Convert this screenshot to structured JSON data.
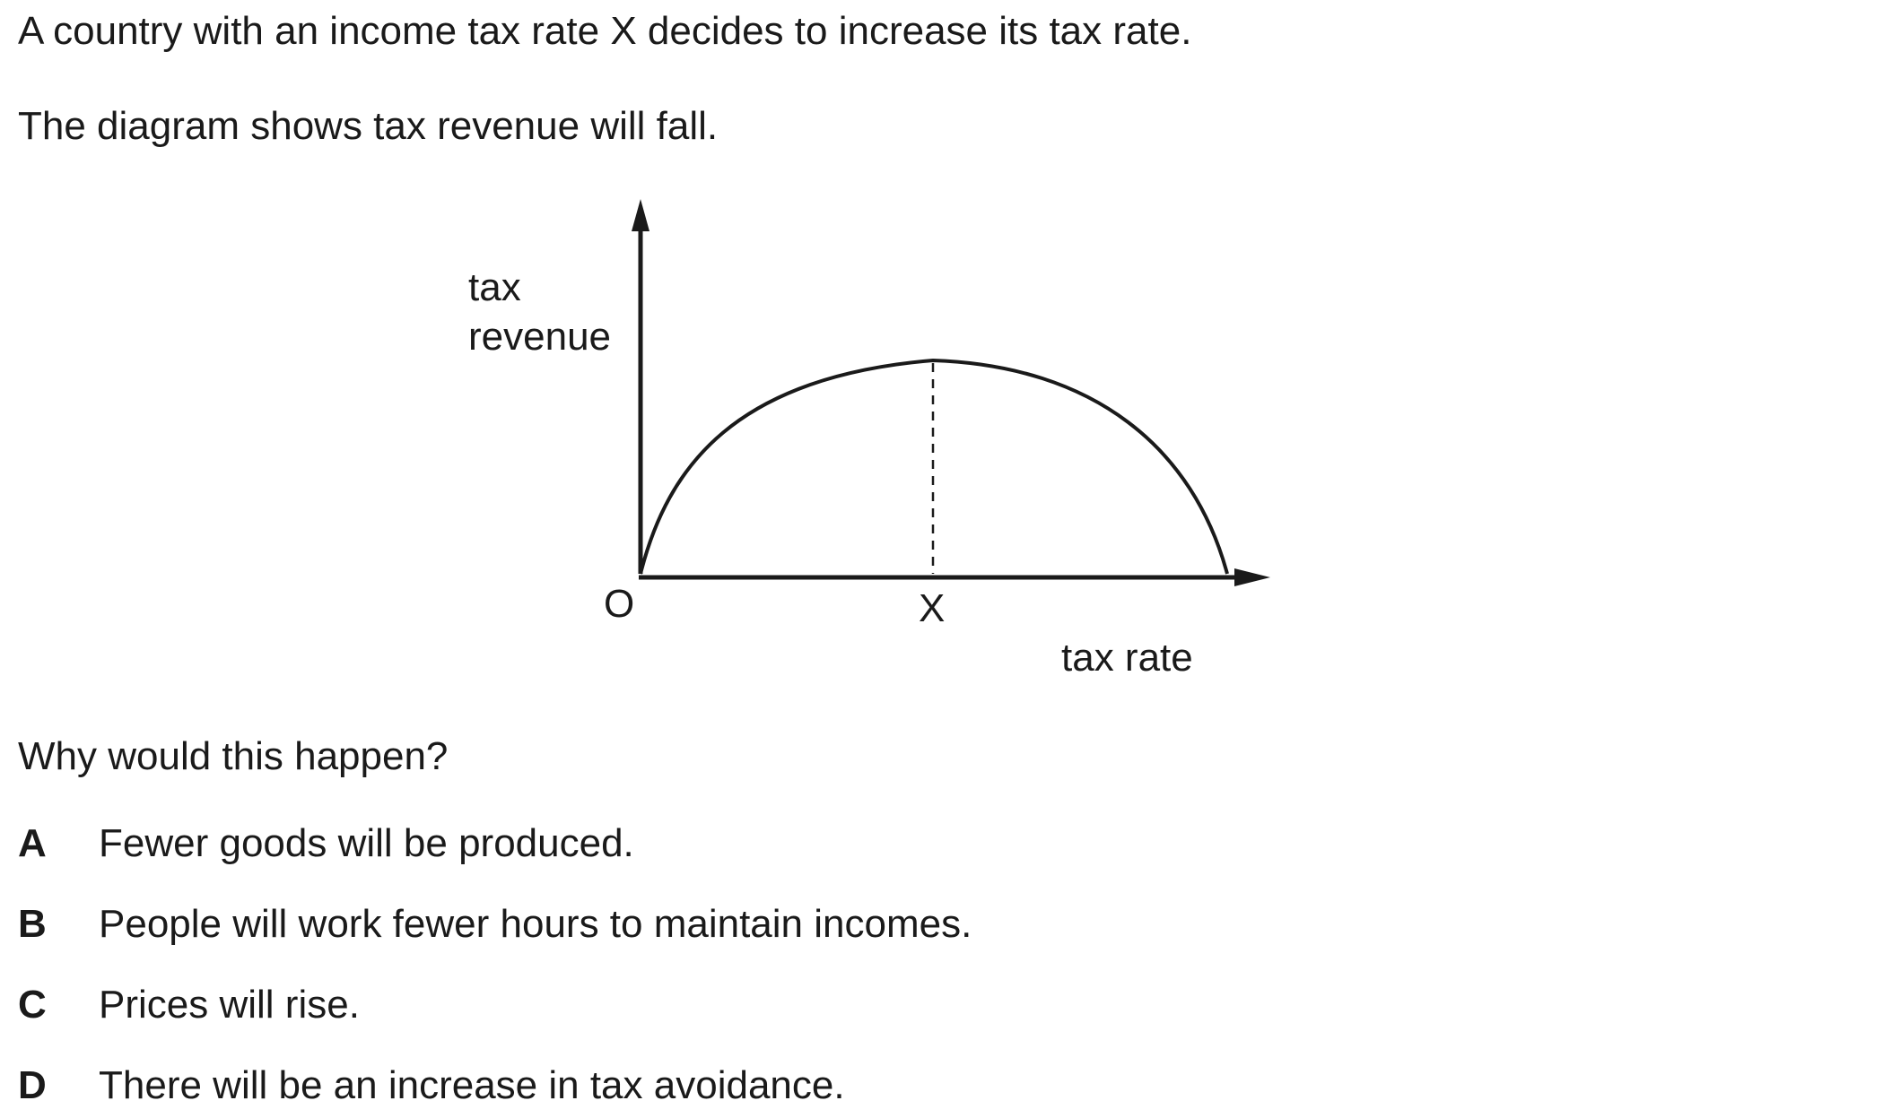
{
  "question": {
    "line1": "A country with an income tax rate X decides to increase its tax rate.",
    "line2": "The diagram shows tax revenue will fall.",
    "prompt": "Why would this happen?"
  },
  "diagram": {
    "y_axis_label_line1": "tax",
    "y_axis_label_line2": "revenue",
    "x_axis_label": "tax rate",
    "origin_label": "O",
    "marker_label": "X"
  },
  "options": [
    {
      "letter": "A",
      "text": "Fewer goods will be produced."
    },
    {
      "letter": "B",
      "text": "People will work fewer hours to maintain incomes."
    },
    {
      "letter": "C",
      "text": "Prices will rise."
    },
    {
      "letter": "D",
      "text": "There will be an increase in tax avoidance."
    }
  ]
}
